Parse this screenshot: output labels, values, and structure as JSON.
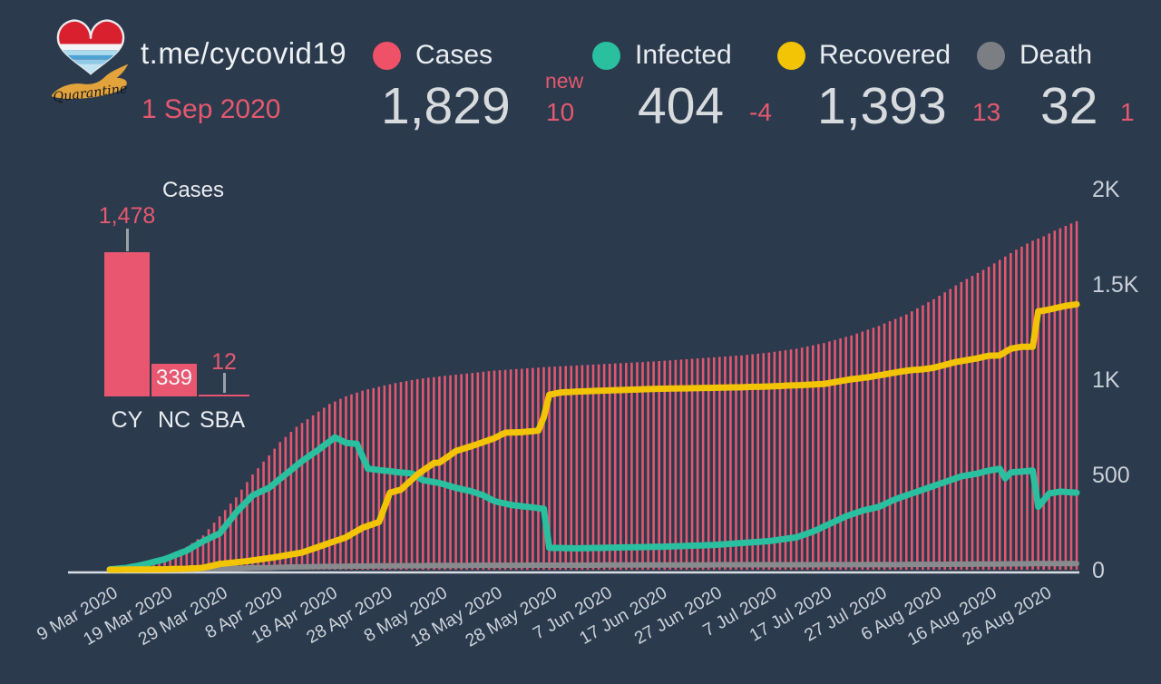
{
  "page": {
    "colors": {
      "background": "#2b3a4d",
      "cases_red": "#ef5168",
      "infected_teal": "#2abf9e",
      "recovered_yellow": "#f2c405",
      "death_gray": "#7b7f83",
      "accent_red": "#e4596f",
      "text_light": "#e9edf0",
      "value_gray": "#d8dbde"
    }
  },
  "header": {
    "title": "t.me/cycovid19",
    "date": "1 Sep 2020",
    "logo_text": "Quarantine",
    "stats": [
      {
        "label": "Cases",
        "value": "1,829",
        "delta_label": "new",
        "delta": "10",
        "color": "#ef5168"
      },
      {
        "label": "Infected",
        "value": "404",
        "delta": "-4",
        "color": "#2abf9e"
      },
      {
        "label": "Recovered",
        "value": "1,393",
        "delta": "13",
        "color": "#f2c405"
      },
      {
        "label": "Death",
        "value": "32",
        "delta": "1",
        "color": "#7b7f83"
      }
    ]
  },
  "mini_chart": {
    "type": "bar",
    "title": "Cases",
    "categories": [
      "CY",
      "NC",
      "SBA"
    ],
    "values": [
      1478,
      339,
      12
    ],
    "value_labels": [
      "1,478",
      "339",
      "12"
    ],
    "bar_color": "#e8566f"
  },
  "chart_data": {
    "type": "bar+line",
    "title": "",
    "x_unit": "day",
    "x_start_date": "9 Mar 2020",
    "x_end_date": "1 Sep 2020",
    "x_tick_interval_days": 10,
    "x_tick_labels": [
      "9 Mar 2020",
      "19 Mar 2020",
      "29 Mar 2020",
      "8 Apr 2020",
      "18 Apr 2020",
      "28 Apr 2020",
      "8 May 2020",
      "18 May 2020",
      "28 May 2020",
      "7 Jun 2020",
      "17 Jun 2020",
      "27 Jun 2020",
      "7 Jul 2020",
      "17 Jul 2020",
      "27 Jul 2020",
      "6 Aug 2020",
      "16 Aug 2020",
      "26 Aug 2020"
    ],
    "y_max": 2000,
    "y_ticks": [
      {
        "label": "0",
        "value": 0
      },
      {
        "label": "500",
        "value": 500
      },
      {
        "label": "1K",
        "value": 1000
      },
      {
        "label": "1.5K",
        "value": 1500
      },
      {
        "label": "2K",
        "value": 2000
      }
    ],
    "legend_position": "top",
    "grid": false,
    "series": [
      {
        "name": "Cases",
        "type": "bar",
        "color": "#e2576f",
        "values": [
          2,
          5,
          7,
          10,
          17,
          23,
          30,
          39,
          49,
          58,
          67,
          80,
          94,
          107,
          120,
          140,
          160,
          180,
          213,
          247,
          280,
          313,
          347,
          380,
          420,
          460,
          500,
          533,
          567,
          600,
          635,
          670,
          697,
          723,
          750,
          770,
          790,
          810,
          830,
          850,
          870,
          883,
          897,
          910,
          920,
          930,
          940,
          947,
          953,
          960,
          967,
          973,
          980,
          985,
          990,
          995,
          1000,
          1004,
          1008,
          1011,
          1015,
          1018,
          1021,
          1024,
          1027,
          1030,
          1033,
          1036,
          1039,
          1042,
          1045,
          1047,
          1049,
          1051,
          1053,
          1055,
          1057,
          1059,
          1061,
          1063,
          1065,
          1066,
          1068,
          1069,
          1071,
          1072,
          1074,
          1075,
          1077,
          1078,
          1080,
          1081,
          1083,
          1084,
          1086,
          1087,
          1089,
          1090,
          1092,
          1093,
          1095,
          1097,
          1099,
          1101,
          1103,
          1105,
          1107,
          1109,
          1111,
          1113,
          1115,
          1117,
          1119,
          1121,
          1123,
          1125,
          1128,
          1131,
          1134,
          1137,
          1140,
          1144,
          1148,
          1152,
          1156,
          1160,
          1166,
          1172,
          1178,
          1184,
          1190,
          1198,
          1206,
          1214,
          1222,
          1230,
          1240,
          1250,
          1260,
          1270,
          1280,
          1292,
          1304,
          1316,
          1328,
          1340,
          1356,
          1372,
          1388,
          1404,
          1420,
          1438,
          1456,
          1474,
          1492,
          1510,
          1526,
          1542,
          1558,
          1574,
          1590,
          1608,
          1626,
          1644,
          1662,
          1680,
          1696,
          1712,
          1727,
          1738,
          1750,
          1765,
          1780,
          1792,
          1805,
          1817,
          1829
        ]
      },
      {
        "name": "Infected",
        "type": "line",
        "color": "#2abf9e",
        "values": [
          2,
          4,
          7,
          9,
          15,
          20,
          26,
          33,
          41,
          48,
          55,
          66,
          78,
          89,
          100,
          117,
          133,
          150,
          163,
          177,
          190,
          227,
          263,
          300,
          330,
          360,
          390,
          403,
          417,
          430,
          453,
          477,
          500,
          523,
          547,
          570,
          590,
          610,
          630,
          652,
          673,
          695,
          680,
          666,
          663,
          660,
          595,
          530,
          527,
          523,
          520,
          517,
          513,
          510,
          508,
          505,
          488,
          470,
          465,
          460,
          455,
          447,
          438,
          430,
          423,
          417,
          410,
          400,
          390,
          375,
          360,
          353,
          347,
          340,
          337,
          333,
          330,
          327,
          323,
          320,
          115,
          114,
          114,
          113,
          113,
          112,
          113,
          113,
          114,
          114,
          115,
          116,
          116,
          117,
          117,
          118,
          118,
          119,
          119,
          120,
          120,
          121,
          122,
          123,
          124,
          125,
          126,
          127,
          128,
          129,
          130,
          132,
          134,
          136,
          138,
          140,
          142,
          144,
          146,
          148,
          150,
          154,
          158,
          162,
          166,
          170,
          180,
          190,
          200,
          213,
          227,
          240,
          253,
          267,
          280,
          290,
          300,
          310,
          317,
          323,
          330,
          343,
          357,
          370,
          380,
          390,
          400,
          410,
          420,
          430,
          440,
          450,
          460,
          470,
          480,
          490,
          495,
          500,
          505,
          513,
          520,
          525,
          530,
          480,
          510,
          513,
          515,
          518,
          520,
          330,
          365,
          400,
          405,
          410,
          408,
          406,
          404
        ]
      },
      {
        "name": "Recovered",
        "type": "line",
        "color": "#f2c405",
        "values": [
          0,
          0,
          0,
          1,
          1,
          1,
          1,
          1,
          2,
          2,
          2,
          3,
          4,
          4,
          5,
          7,
          8,
          10,
          17,
          23,
          30,
          33,
          36,
          39,
          42,
          45,
          49,
          53,
          57,
          61,
          65,
          70,
          75,
          80,
          85,
          90,
          100,
          110,
          120,
          130,
          140,
          150,
          160,
          170,
          187,
          203,
          220,
          230,
          240,
          250,
          327,
          404,
          412,
          420,
          447,
          473,
          500,
          520,
          540,
          560,
          562,
          582,
          602,
          623,
          632,
          641,
          650,
          660,
          670,
          680,
          690,
          705,
          719,
          720,
          721,
          722,
          725,
          727,
          730,
          800,
          918,
          924,
          930,
          932,
          933,
          935,
          936,
          937,
          938,
          939,
          940,
          941,
          942,
          943,
          944,
          945,
          946,
          947,
          948,
          949,
          950,
          950,
          951,
          951,
          952,
          952,
          953,
          953,
          954,
          954,
          955,
          956,
          956,
          957,
          957,
          958,
          959,
          960,
          960,
          961,
          962,
          963,
          964,
          966,
          967,
          968,
          969,
          971,
          972,
          974,
          975,
          980,
          985,
          990,
          995,
          1000,
          1003,
          1007,
          1010,
          1015,
          1020,
          1025,
          1030,
          1035,
          1040,
          1044,
          1048,
          1050,
          1052,
          1056,
          1060,
          1068,
          1075,
          1083,
          1090,
          1095,
          1100,
          1105,
          1110,
          1117,
          1123,
          1124,
          1125,
          1143,
          1160,
          1165,
          1170,
          1170,
          1170,
          1356,
          1360,
          1366,
          1372,
          1379,
          1385,
          1389,
          1393
        ]
      },
      {
        "name": "Death",
        "type": "line",
        "color": "#888b8e",
        "values": [
          0,
          0,
          0,
          0,
          0,
          0,
          0,
          0,
          0,
          1,
          1,
          1,
          1,
          2,
          2,
          3,
          4,
          4,
          5,
          5,
          6,
          7,
          7,
          8,
          8,
          9,
          10,
          10,
          11,
          11,
          12,
          13,
          13,
          14,
          14,
          15,
          15,
          16,
          16,
          17,
          17,
          17,
          18,
          18,
          19,
          19,
          19,
          19,
          20,
          20,
          20,
          20,
          20,
          21,
          21,
          21,
          21,
          21,
          22,
          22,
          22,
          22,
          22,
          22,
          22,
          22,
          23,
          23,
          23,
          23,
          23,
          23,
          23,
          23,
          23,
          23,
          24,
          24,
          24,
          24,
          24,
          24,
          24,
          24,
          24,
          24,
          24,
          24,
          24,
          24,
          25,
          25,
          25,
          25,
          25,
          25,
          25,
          25,
          25,
          25,
          25,
          25,
          25,
          25,
          25,
          25,
          25,
          25,
          25,
          25,
          26,
          26,
          26,
          26,
          26,
          26,
          26,
          26,
          26,
          26,
          26,
          26,
          26,
          26,
          26,
          26,
          26,
          26,
          26,
          26,
          27,
          27,
          27,
          27,
          27,
          27,
          27,
          27,
          27,
          27,
          27,
          27,
          27,
          27,
          27,
          28,
          28,
          28,
          28,
          28,
          28,
          28,
          28,
          29,
          29,
          29,
          29,
          29,
          30,
          30,
          30,
          30,
          30,
          31,
          31,
          31,
          31,
          31,
          32,
          32,
          32,
          32,
          32,
          32,
          32,
          32,
          32
        ]
      }
    ]
  }
}
